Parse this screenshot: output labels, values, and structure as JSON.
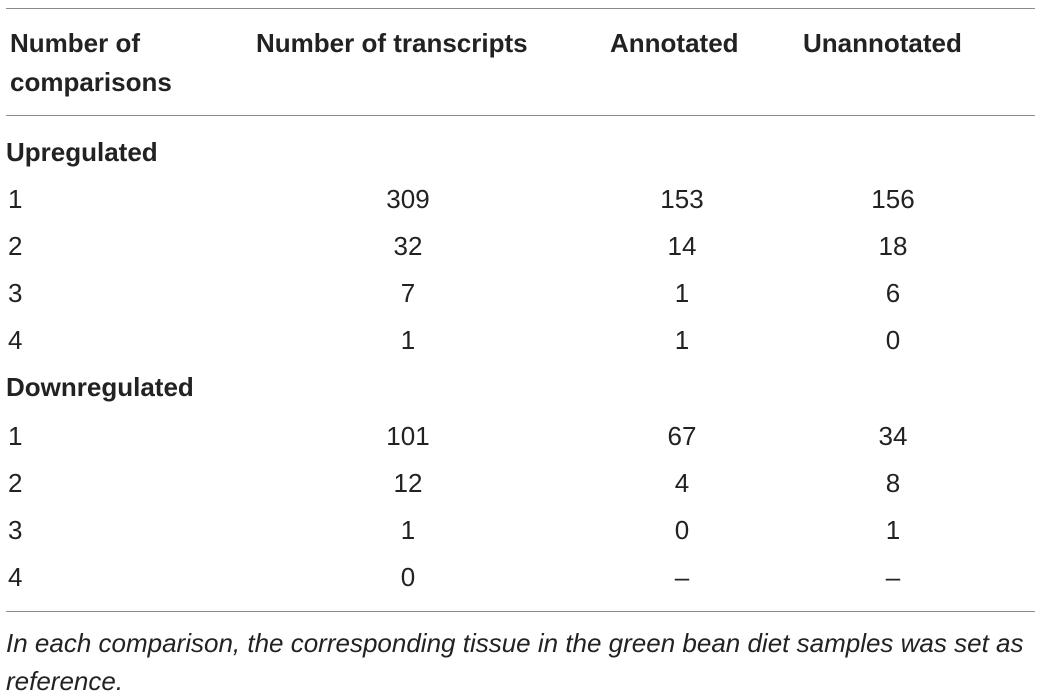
{
  "table": {
    "headers": {
      "comparisons": "Number of comparisons",
      "transcripts": "Number of transcripts",
      "annotated": "Annotated",
      "unannotated": "Unannotated"
    },
    "sections": [
      {
        "title": "Upregulated",
        "rows": [
          {
            "n": "1",
            "transcripts": "309",
            "annotated": "153",
            "unannotated": "156"
          },
          {
            "n": "2",
            "transcripts": "32",
            "annotated": "14",
            "unannotated": "18"
          },
          {
            "n": "3",
            "transcripts": "7",
            "annotated": "1",
            "unannotated": "6"
          },
          {
            "n": "4",
            "transcripts": "1",
            "annotated": "1",
            "unannotated": "0"
          }
        ]
      },
      {
        "title": "Downregulated",
        "rows": [
          {
            "n": "1",
            "transcripts": "101",
            "annotated": "67",
            "unannotated": "34"
          },
          {
            "n": "2",
            "transcripts": "12",
            "annotated": "4",
            "unannotated": "8"
          },
          {
            "n": "3",
            "transcripts": "1",
            "annotated": "0",
            "unannotated": "1"
          },
          {
            "n": "4",
            "transcripts": "0",
            "annotated": "–",
            "unannotated": "–"
          }
        ]
      }
    ],
    "footnote": "In each comparison, the corresponding tissue in the green bean diet samples was set as reference."
  }
}
